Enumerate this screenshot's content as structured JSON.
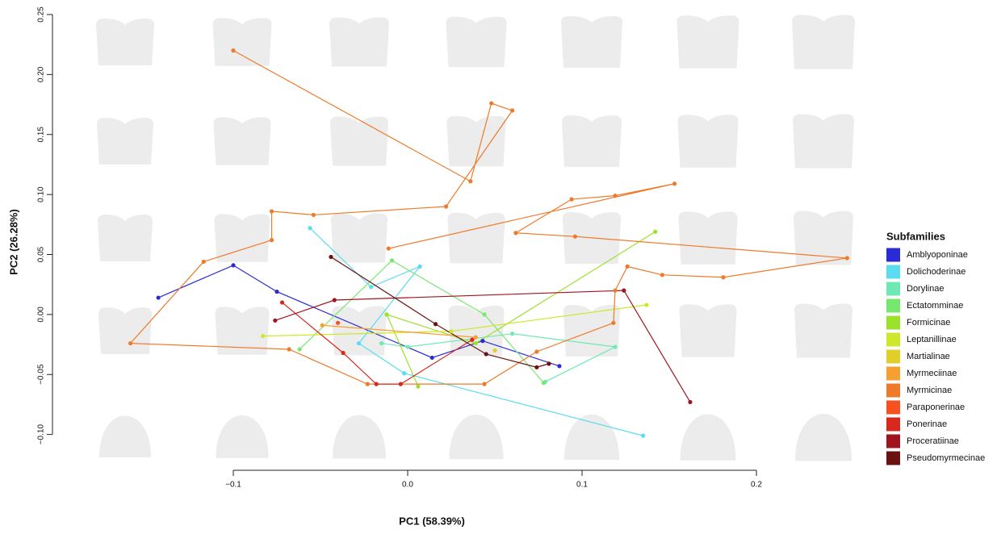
{
  "chart_data": {
    "type": "phylomorphospace",
    "x_label": "PC1 (58.39%)",
    "y_label": "PC2 (26.28%)",
    "legend_title": "Subfamilies",
    "xlim": [
      -0.16,
      0.26
    ],
    "ylim": [
      -0.11,
      0.25
    ],
    "xticks": [
      {
        "value": -0.1,
        "label": "−0.1"
      },
      {
        "value": 0,
        "label": "0.0"
      },
      0.1,
      0.2
    ],
    "yticks": [
      {
        "value": -0.1,
        "label": "−0.10"
      },
      {
        "value": -0.05,
        "label": "−0.05"
      },
      {
        "value": 0,
        "label": "0.00"
      },
      {
        "value": 0.05,
        "label": "0.05"
      },
      {
        "value": 0.1,
        "label": "0.10"
      },
      {
        "value": 0.15,
        "label": "0.15"
      },
      {
        "value": 0.2,
        "label": "0.20"
      },
      {
        "value": 0.25,
        "label": "0.25"
      }
    ],
    "series": [
      {
        "name": "Amblyoponinae",
        "color": "#2b2bd6",
        "x": [
          -0.143,
          -0.1,
          -0.075,
          0.014,
          0.043,
          0.087
        ],
        "y": [
          0.014,
          0.041,
          0.019,
          -0.036,
          -0.022,
          -0.043
        ]
      },
      {
        "name": "Dolichoderinae",
        "color": "#5bdcf0",
        "x": [
          -0.056,
          -0.021,
          0.007,
          -0.028,
          -0.002,
          0.135
        ],
        "y": [
          0.072,
          0.023,
          0.04,
          -0.024,
          -0.049,
          -0.101
        ]
      },
      {
        "name": "Dorylinae",
        "color": "#6fe8b4",
        "x": [
          -0.015,
          0.0,
          0.06,
          0.119,
          0.079
        ],
        "y": [
          -0.024,
          -0.027,
          -0.016,
          -0.027,
          -0.056
        ]
      },
      {
        "name": "Ectatomminae",
        "color": "#77e86e",
        "x": [
          -0.062,
          -0.009,
          0.044,
          0.078
        ],
        "y": [
          -0.029,
          0.045,
          0.0,
          -0.057
        ]
      },
      {
        "name": "Formicinae",
        "color": "#9be22d",
        "x": [
          0.006,
          -0.012,
          0.039,
          0.142
        ],
        "y": [
          -0.06,
          0.0,
          -0.024,
          0.069
        ]
      },
      {
        "name": "Leptanillinae",
        "color": "#cde82a",
        "x": [
          -0.083,
          0.025,
          0.137
        ],
        "y": [
          -0.018,
          -0.014,
          0.008
        ]
      },
      {
        "name": "Martialinae",
        "color": "#e0cf2a",
        "x": [
          0.05
        ],
        "y": [
          -0.03
        ]
      },
      {
        "name": "Myrmeciinae",
        "color": "#f5a030",
        "x": [
          -0.049,
          0.039
        ],
        "y": [
          -0.009,
          -0.019
        ]
      },
      {
        "name": "Myrmicinae",
        "color": "#ee7a2a",
        "x": [
          -0.1,
          0.036,
          0.048,
          0.06,
          0.022,
          -0.054,
          -0.078,
          -0.078,
          -0.117,
          -0.159,
          -0.068,
          -0.023,
          0.044,
          0.074,
          0.118,
          0.119,
          0.126,
          0.146,
          0.181,
          0.252,
          0.096,
          0.062,
          0.094,
          0.119,
          0.153,
          -0.011
        ],
        "y": [
          0.22,
          0.111,
          0.176,
          0.17,
          0.09,
          0.083,
          0.086,
          0.062,
          0.044,
          -0.024,
          -0.029,
          -0.058,
          -0.058,
          -0.031,
          -0.007,
          0.02,
          0.04,
          0.033,
          0.031,
          0.047,
          0.065,
          0.068,
          0.096,
          0.099,
          0.109,
          0.055
        ]
      },
      {
        "name": "Paraponerinae",
        "color": "#f8501e",
        "x": [
          -0.04
        ],
        "y": [
          -0.007
        ]
      },
      {
        "name": "Ponerinae",
        "color": "#d8281e",
        "x": [
          -0.072,
          -0.037,
          -0.018,
          -0.004,
          0.037
        ],
        "y": [
          0.01,
          -0.032,
          -0.058,
          -0.058,
          -0.021
        ]
      },
      {
        "name": "Proceratiinae",
        "color": "#a0141e",
        "x": [
          -0.076,
          -0.042,
          0.124,
          0.162
        ],
        "y": [
          -0.005,
          0.012,
          0.02,
          -0.073
        ]
      },
      {
        "name": "Pseudomyrmecinae",
        "color": "#6a1212",
        "x": [
          -0.044,
          0.016,
          0.045,
          0.074,
          0.081
        ],
        "y": [
          0.048,
          -0.008,
          -0.033,
          -0.044,
          -0.041
        ]
      }
    ]
  }
}
